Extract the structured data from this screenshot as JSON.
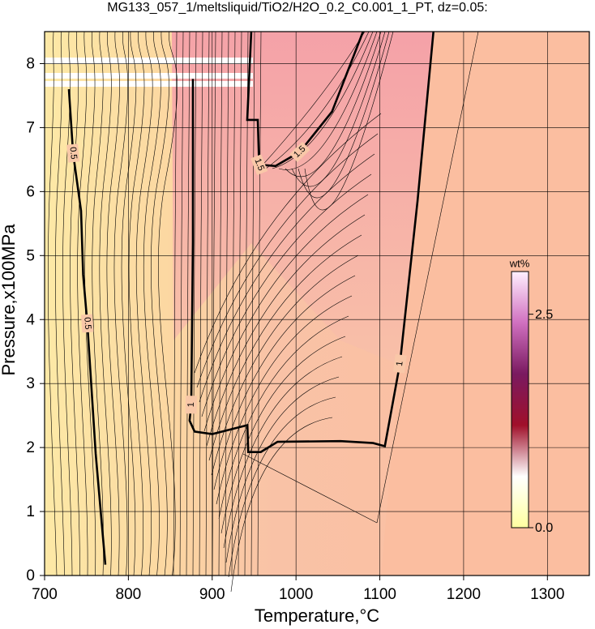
{
  "chart_data": {
    "type": "contour",
    "title": "MG133_057_1/meltsliquid/TiO2/H2O_0.2_C0.001_1_PT, dz=0.05:",
    "x_label": "Temperature,°C",
    "y_label": "Pressure,x100MPa",
    "xlim": [
      700,
      1350
    ],
    "ylim": [
      0,
      8.5
    ],
    "xticks": [
      700,
      800,
      900,
      1000,
      1100,
      1200,
      1300
    ],
    "yticks": [
      0,
      1,
      2,
      3,
      4,
      5,
      6,
      7,
      8
    ],
    "grid": true,
    "contours": [
      {
        "level": 0.5,
        "color": "#000000",
        "x": [
          772.5,
          761,
          751,
          746,
          743.5,
          734,
          729
        ],
        "y": [
          0.17,
          1.9,
          3.94,
          4.7,
          5.7,
          6.6,
          7.6
        ]
      },
      {
        "level": 1,
        "color": "#000000",
        "x": [
          877,
          877,
          875,
          873,
          879,
          900,
          942,
          943,
          958,
          978,
          1053,
          1092,
          1106,
          1124,
          1145,
          1164
        ],
        "y": [
          7.76,
          5.22,
          2.67,
          2.42,
          2.25,
          2.21,
          2.35,
          1.93,
          1.93,
          2.09,
          2.1,
          2.07,
          2.02,
          3.31,
          5.85,
          8.5
        ]
      },
      {
        "level": 1.5,
        "color": "#000000",
        "x": [
          946.6,
          941.8,
          954.4,
          956,
          975.6,
          1004.6,
          1043,
          1080
        ],
        "y": [
          8.5,
          7.12,
          7.12,
          6.42,
          6.4,
          6.62,
          7.25,
          8.5
        ]
      }
    ],
    "colorbar": {
      "label": "wt%",
      "lim": [
        0,
        3.0
      ],
      "ticks": [
        {
          "value": 0,
          "label": "0.0"
        },
        2.5
      ],
      "colors": [
        "#ffffa0",
        "#ffffff",
        "#a0102a",
        "#7a1a60",
        "#d070c0",
        "#fff0ff"
      ]
    }
  }
}
